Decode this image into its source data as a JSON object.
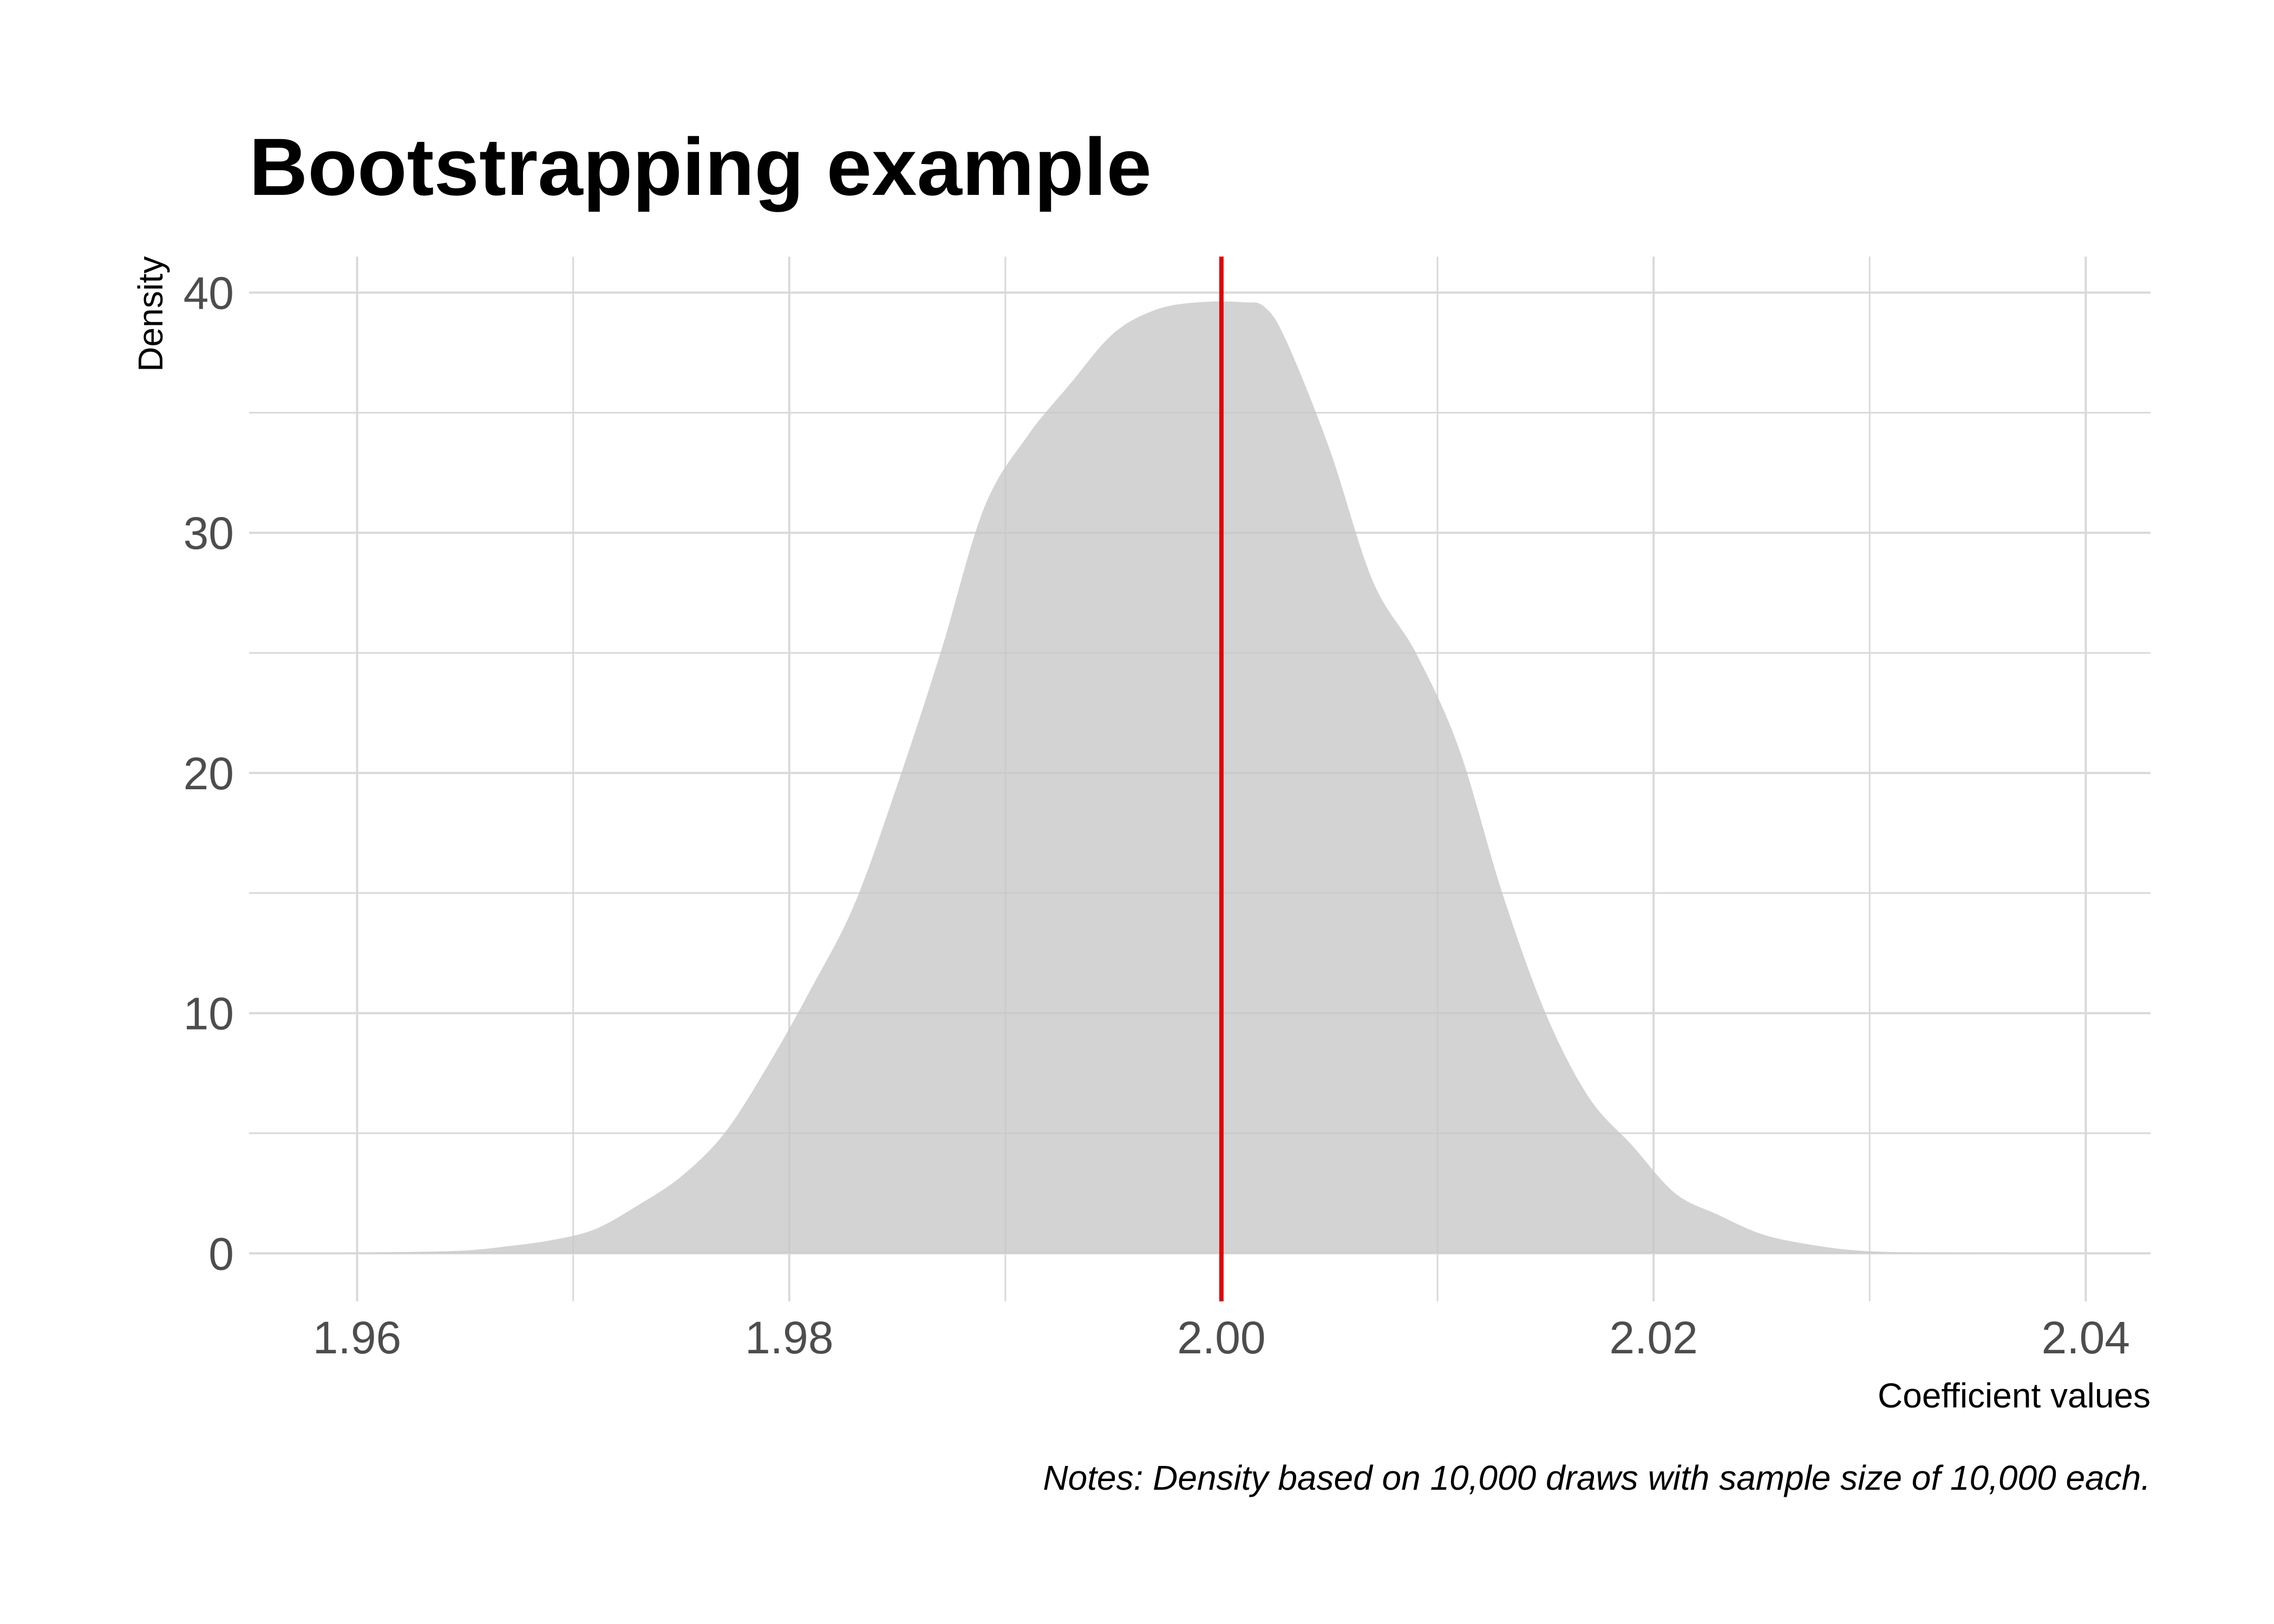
{
  "chart_data": {
    "type": "area",
    "title": "Bootstrapping example",
    "xlabel": "Coefficient values",
    "ylabel": "Density",
    "caption": "Notes: Density based on 10,000 draws with sample size of 10,000 each.",
    "xlim": [
      1.955,
      2.043
    ],
    "ylim": [
      -2,
      41.5
    ],
    "x_ticks": [
      1.96,
      1.98,
      2.0,
      2.02,
      2.04
    ],
    "x_tick_labels": [
      "1.96",
      "1.98",
      "2.00",
      "2.02",
      "2.04"
    ],
    "x_minor_ticks": [
      1.97,
      1.99,
      2.01,
      2.03
    ],
    "y_ticks": [
      0,
      10,
      20,
      30,
      40
    ],
    "y_tick_labels": [
      "0",
      "10",
      "20",
      "30",
      "40"
    ],
    "y_minor_ticks": [
      5,
      15,
      25,
      35
    ],
    "grid": true,
    "reference_line": {
      "x": 2.0,
      "color": "#e00000"
    },
    "fill_color": "#c6c6c6",
    "grid_color": "#d9d9d9",
    "series": [
      {
        "x": [
          1.959,
          1.962,
          1.965,
          1.967,
          1.969,
          1.971,
          1.973,
          1.975,
          1.977,
          1.979,
          1.981,
          1.983,
          1.985,
          1.987,
          1.989,
          1.991,
          1.993,
          1.995,
          1.997,
          1.999,
          2.001,
          2.002,
          2.003,
          2.005,
          2.007,
          2.009,
          2.011,
          2.013,
          2.015,
          2.017,
          2.019,
          2.021,
          2.023,
          2.025,
          2.027,
          2.029,
          2.031,
          2.033,
          2.036,
          2.039
        ],
        "y": [
          0.0,
          0.05,
          0.12,
          0.3,
          0.55,
          1.0,
          2.0,
          3.2,
          5.0,
          7.8,
          11.0,
          14.5,
          19.5,
          25.0,
          31.0,
          34.0,
          36.2,
          38.3,
          39.3,
          39.6,
          39.6,
          39.4,
          38.0,
          33.5,
          28.0,
          25.0,
          21.0,
          15.0,
          10.0,
          6.5,
          4.5,
          2.5,
          1.6,
          0.8,
          0.4,
          0.15,
          0.05,
          0.02,
          0.01,
          0.0
        ]
      }
    ]
  }
}
